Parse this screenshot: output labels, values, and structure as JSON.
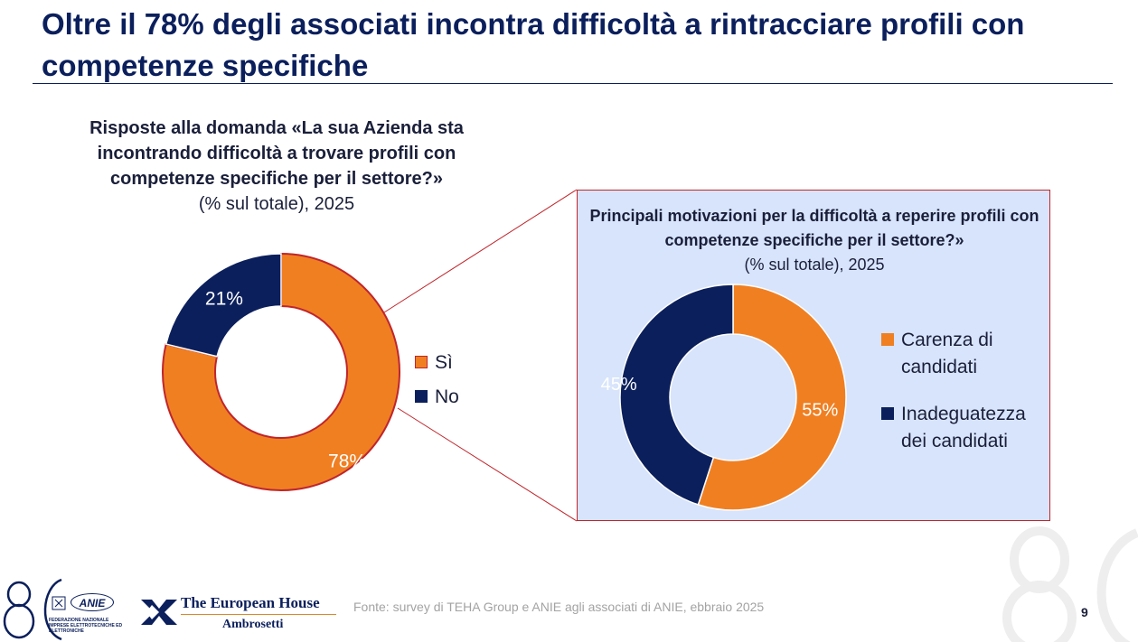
{
  "title": "Oltre il 78% degli associati incontra difficoltà a rintracciare profili con competenze specifiche",
  "colors": {
    "orange": "#f07f22",
    "navy": "#0b1f5c",
    "red_outline": "#c0252b",
    "panel": "#d7e4fb"
  },
  "left": {
    "question": "Risposte alla domanda «La sua Azienda sta incontrando difficoltà a trovare profili con competenze specifiche per il settore?»",
    "subtitle": "(% sul totale), 2025"
  },
  "right": {
    "question": "Principali motivazioni per la difficoltà a reperire profili con competenze specifiche per il settore?»",
    "subtitle": "(% sul totale), 2025"
  },
  "chart_data": [
    {
      "type": "pie",
      "style": "donut",
      "categories": [
        "Sì",
        "No"
      ],
      "values": [
        78,
        21
      ],
      "labels": [
        "78%",
        "21%"
      ],
      "colors": [
        "#f07f22",
        "#0b1f5c"
      ],
      "legend": "right"
    },
    {
      "type": "pie",
      "style": "donut",
      "categories": [
        "Carenza di candidati",
        "Inadeguatezza dei candidati"
      ],
      "values": [
        55,
        45
      ],
      "labels": [
        "55%",
        "45%"
      ],
      "colors": [
        "#f07f22",
        "#0b1f5c"
      ],
      "legend": "right"
    }
  ],
  "footer": {
    "source": "Fonte: survey di TEHA Group e ANIE agli associati di ANIE, ebbraio 2025",
    "page": "9",
    "logo_80": "80",
    "anie_name": "ANIE",
    "anie_subtext": "FEDERAZIONE NAZIONALE IMPRESE ELETTROTECNICHE ED ELETTRONICHE",
    "teh_name": "The European House",
    "teh_sub": "Ambrosetti"
  }
}
